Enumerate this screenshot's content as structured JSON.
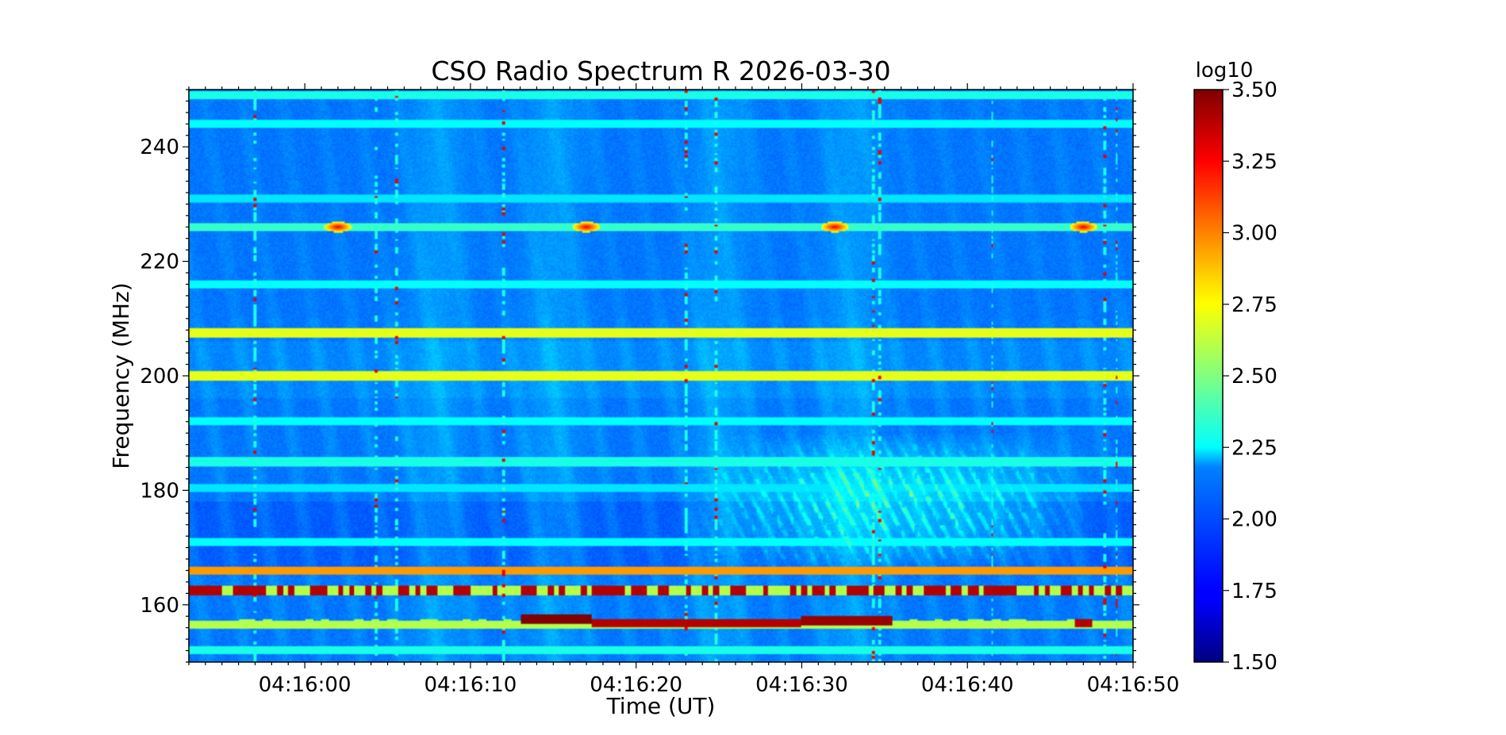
{
  "chart_data": {
    "type": "heatmap",
    "title": "CSO Radio Spectrum R 2026-03-30",
    "xlabel": "Time (UT)",
    "ylabel": "Frequency (MHz)",
    "colorbar_label": "log10",
    "colormap": "jet",
    "x_ticks": [
      "04:16:00",
      "04:16:10",
      "04:16:20",
      "04:16:30",
      "04:16:40",
      "04:16:50"
    ],
    "x_tick_seconds": [
      960,
      970,
      980,
      990,
      1000,
      1010
    ],
    "xlim_seconds": [
      953,
      1010
    ],
    "y_ticks": [
      160,
      180,
      200,
      220,
      240
    ],
    "ylim": [
      150,
      250
    ],
    "colorbar_ticks": [
      "1.50",
      "1.75",
      "2.00",
      "2.25",
      "2.50",
      "2.75",
      "3.00",
      "3.25",
      "3.50"
    ],
    "clim": [
      1.5,
      3.5
    ],
    "background_level": 2.0,
    "horizontal_bands": [
      {
        "freq": 249.0,
        "level": 2.3
      },
      {
        "freq": 244.0,
        "level": 2.25
      },
      {
        "freq": 231.0,
        "level": 2.2
      },
      {
        "freq": 226.0,
        "level": 2.35
      },
      {
        "freq": 216.0,
        "level": 2.25
      },
      {
        "freq": 207.5,
        "level": 2.7
      },
      {
        "freq": 200.0,
        "level": 2.7
      },
      {
        "freq": 192.0,
        "level": 2.25
      },
      {
        "freq": 185.0,
        "level": 2.3
      },
      {
        "freq": 180.5,
        "level": 2.2
      },
      {
        "freq": 171.0,
        "level": 2.25
      },
      {
        "freq": 166.0,
        "level": 2.95
      },
      {
        "freq": 162.5,
        "level": 3.3
      },
      {
        "freq": 156.5,
        "level": 2.6
      },
      {
        "freq": 152.0,
        "level": 2.3
      }
    ],
    "vertical_spikes_seconds": [
      957,
      964.3,
      965.5,
      972,
      983,
      984.8,
      994.3,
      994.7,
      1001.5,
      1008.3,
      1009
    ],
    "bursts": [
      {
        "time_seconds": 962,
        "freq": 226,
        "level": 3.3
      },
      {
        "time_seconds": 977,
        "freq": 226,
        "level": 3.3
      },
      {
        "time_seconds": 992,
        "freq": 226,
        "level": 3.3
      },
      {
        "time_seconds": 1007,
        "freq": 226,
        "level": 3.3
      }
    ],
    "strong_segments": [
      {
        "start_seconds": 973,
        "end_seconds": 977.3,
        "freq": 157.5,
        "level": 3.5
      },
      {
        "start_seconds": 977.3,
        "end_seconds": 990,
        "freq": 156.8,
        "level": 3.4
      },
      {
        "start_seconds": 990,
        "end_seconds": 995.5,
        "freq": 157.3,
        "level": 3.45
      },
      {
        "start_seconds": 1006.5,
        "end_seconds": 1007.5,
        "freq": 156.8,
        "level": 3.4
      }
    ],
    "emission_region": {
      "start_seconds": 983,
      "end_seconds": 1008,
      "freq_min": 165,
      "freq_max": 190,
      "level": 2.35
    }
  }
}
